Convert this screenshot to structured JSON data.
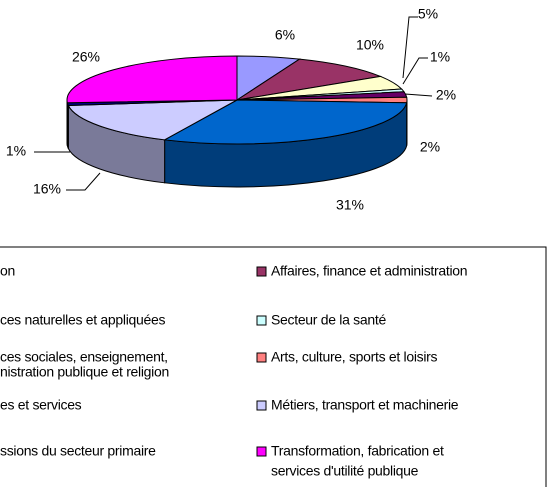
{
  "chart_data": {
    "type": "pie",
    "categories": [
      [
        "on"
      ],
      [
        "Affaires, finance et administration"
      ],
      [
        "ces naturelles et appliquées"
      ],
      [
        "Secteur de la santé"
      ],
      [
        "ces sociales, enseignement,",
        "nistration publique et religion"
      ],
      [
        "Arts, culture, sports et loisirs"
      ],
      [
        "es et services"
      ],
      [
        "Métiers, transport et machinerie"
      ],
      [
        "ssions du secteur primaire"
      ],
      [
        "Transformation, fabrication et",
        "services d'utilité publique"
      ]
    ],
    "values": [
      6,
      10,
      5,
      1,
      2,
      2,
      31,
      16,
      1,
      26
    ],
    "value_labels": [
      "6%",
      "10%",
      "5%",
      "1%",
      "2%",
      "2%",
      "31%",
      "16%",
      "1%",
      "26%"
    ],
    "colors": [
      "#9999ff",
      "#993366",
      "#ffffcc",
      "#ccffff",
      "#660066",
      "#ff8080",
      "#0066cc",
      "#ccccff",
      "#000080",
      "#ff00ff"
    ],
    "legend": "bottom"
  }
}
